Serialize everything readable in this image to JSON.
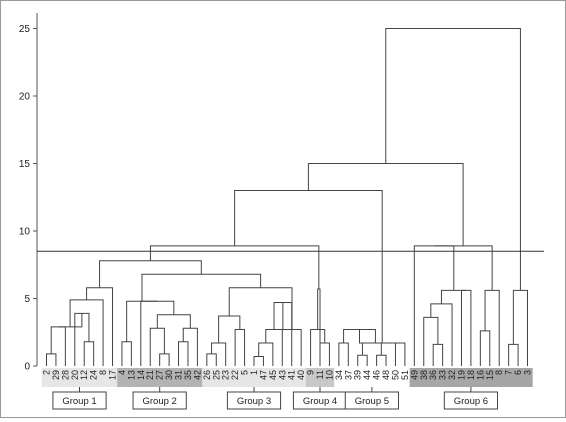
{
  "chart_data": {
    "type": "dendrogram",
    "ylim": [
      0,
      26
    ],
    "yticks": [
      0,
      5,
      10,
      15,
      20,
      25
    ],
    "cut_height": 8.5,
    "leaves": [
      "2",
      "29",
      "28",
      "20",
      "12",
      "24",
      "8",
      "17",
      "4",
      "13",
      "14",
      "21",
      "27",
      "30",
      "31",
      "35",
      "42",
      "26",
      "25",
      "23",
      "22",
      "5",
      "1",
      "47",
      "45",
      "43",
      "41",
      "40",
      "9",
      "11",
      "10",
      "34",
      "37",
      "39",
      "44",
      "46",
      "48",
      "50",
      "51",
      "49",
      "38",
      "36",
      "33",
      "32",
      "19",
      "18",
      "16",
      "15",
      "8",
      "7",
      "6",
      "3"
    ],
    "leaf_band_shades": [
      "#e6e6e6",
      "#e6e6e6",
      "#e6e6e6",
      "#e6e6e6",
      "#e6e6e6",
      "#e6e6e6",
      "#e6e6e6",
      "#e6e6e6",
      "#b3b3b3",
      "#b3b3b3",
      "#b3b3b3",
      "#b3b3b3",
      "#b3b3b3",
      "#b3b3b3",
      "#b3b3b3",
      "#b3b3b3",
      "#b3b3b3",
      "#e6e6e6",
      "#e6e6e6",
      "#e6e6e6",
      "#e6e6e6",
      "#e6e6e6",
      "#e6e6e6",
      "#e6e6e6",
      "#e6e6e6",
      "#e6e6e6",
      "#e6e6e6",
      "#e6e6e6",
      "#c8c8c8",
      "#c8c8c8",
      "#c8c8c8",
      "#ffffff",
      "#ffffff",
      "#ffffff",
      "#ffffff",
      "#ffffff",
      "#ffffff",
      "#ffffff",
      "#ffffff",
      "#a6a6a6",
      "#a6a6a6",
      "#a6a6a6",
      "#a6a6a6",
      "#a6a6a6",
      "#a6a6a6",
      "#a6a6a6",
      "#a6a6a6",
      "#a6a6a6",
      "#a6a6a6",
      "#a6a6a6",
      "#a6a6a6",
      "#a6a6a6"
    ],
    "groups": [
      {
        "label": "Group 1",
        "first": 0,
        "last": 7
      },
      {
        "label": "Group 2",
        "first": 8,
        "last": 16
      },
      {
        "label": "Group 3",
        "first": 17,
        "last": 27
      },
      {
        "label": "Group 4",
        "first": 28,
        "last": 30
      },
      {
        "label": "Group 5",
        "first": 31,
        "last": 38
      },
      {
        "label": "Group 6",
        "first": 39,
        "last": 51
      }
    ],
    "merges": [
      {
        "id": "m1",
        "a": 0,
        "b": 1,
        "h": 0.9
      },
      {
        "id": "m2",
        "a": "m1",
        "b": 2,
        "h": 2.9
      },
      {
        "id": "m3",
        "a": 4,
        "b": 5,
        "h": 1.8
      },
      {
        "id": "m4",
        "a": 3,
        "b": "m3",
        "h": 3.9
      },
      {
        "id": "m5",
        "a": "m2",
        "b": "m4",
        "h": 2.9
      },
      {
        "id": "m6",
        "a": "m5",
        "b": 6,
        "h": 4.9
      },
      {
        "id": "m7",
        "a": "m6",
        "b": 7,
        "h": 5.8
      },
      {
        "id": "m8",
        "a": 8,
        "b": 9,
        "h": 1.8
      },
      {
        "id": "m9",
        "a": 12,
        "b": 13,
        "h": 0.9
      },
      {
        "id": "m10",
        "a": 11,
        "b": "m9",
        "h": 2.8
      },
      {
        "id": "m11",
        "a": 14,
        "b": 15,
        "h": 1.8
      },
      {
        "id": "m12",
        "a": "m11",
        "b": 16,
        "h": 2.8
      },
      {
        "id": "m13",
        "a": "m10",
        "b": "m12",
        "h": 3.8
      },
      {
        "id": "m14",
        "a": 10,
        "b": "m13",
        "h": 4.8
      },
      {
        "id": "m15",
        "a": "m8",
        "b": "m14",
        "h": 4.8
      },
      {
        "id": "m16",
        "a": 17,
        "b": 18,
        "h": 0.9
      },
      {
        "id": "m17",
        "a": "m16",
        "b": 19,
        "h": 1.7
      },
      {
        "id": "m18",
        "a": 20,
        "b": 21,
        "h": 2.7
      },
      {
        "id": "m19",
        "a": "m17",
        "b": "m18",
        "h": 3.7
      },
      {
        "id": "m20",
        "a": 22,
        "b": 23,
        "h": 0.7
      },
      {
        "id": "m21",
        "a": "m20",
        "b": 24,
        "h": 1.7
      },
      {
        "id": "m22",
        "a": "m21",
        "b": 25,
        "h": 2.7
      },
      {
        "id": "m23",
        "a": "m22",
        "b": 26,
        "h": 4.7
      },
      {
        "id": "m24",
        "a": "m23",
        "b": 27,
        "h": 2.7
      },
      {
        "id": "m25",
        "a": "m19",
        "b": "m24",
        "h": 5.8
      },
      {
        "id": "m26",
        "a": "m15",
        "b": "m25",
        "h": 6.8
      },
      {
        "id": "m27",
        "a": "m7",
        "b": "m26",
        "h": 7.8
      },
      {
        "id": "m28",
        "a": 29,
        "b": 30,
        "h": 1.7
      },
      {
        "id": "m29",
        "a": 28,
        "b": "m28",
        "h": 2.7
      },
      {
        "id": "m30",
        "a": "m29",
        "b": 29,
        "h": 5.7
      },
      {
        "id": "m31",
        "a": "m27",
        "b": "m30",
        "h": 8.9
      },
      {
        "id": "m32",
        "a": 31,
        "b": 32,
        "h": 1.7
      },
      {
        "id": "m33",
        "a": 33,
        "b": 34,
        "h": 0.8
      },
      {
        "id": "m34",
        "a": 35,
        "b": 36,
        "h": 0.8
      },
      {
        "id": "m35",
        "a": "m34",
        "b": 37,
        "h": 1.7
      },
      {
        "id": "m36",
        "a": "m33",
        "b": "m35",
        "h": 1.7
      },
      {
        "id": "m37",
        "a": "m32",
        "b": "m36",
        "h": 2.7
      },
      {
        "id": "m38",
        "a": "m37",
        "b": 38,
        "h": 1.7
      },
      {
        "id": "m39",
        "a": "m31",
        "b": "m38",
        "h": 13.0
      },
      {
        "id": "m40",
        "a": 41,
        "b": 42,
        "h": 1.6
      },
      {
        "id": "m41",
        "a": 40,
        "b": "m40",
        "h": 3.6
      },
      {
        "id": "m42",
        "a": "m41",
        "b": 43,
        "h": 4.6
      },
      {
        "id": "m43",
        "a": 44,
        "b": 45,
        "h": 5.6
      },
      {
        "id": "m44",
        "a": "m42",
        "b": "m43",
        "h": 5.6
      },
      {
        "id": "m45",
        "a": 46,
        "b": 47,
        "h": 2.6
      },
      {
        "id": "m46",
        "a": "m45",
        "b": 48,
        "h": 5.6
      },
      {
        "id": "m47",
        "a": 49,
        "b": 50,
        "h": 1.6
      },
      {
        "id": "m48",
        "a": "m47",
        "b": 51,
        "h": 5.6
      },
      {
        "id": "m49",
        "a": 39,
        "b": "m44",
        "h": 8.9
      },
      {
        "id": "m50",
        "a": "m49",
        "b": "m46",
        "h": 8.9
      },
      {
        "id": "m51",
        "a": "m39",
        "b": "m50",
        "h": 15.0
      },
      {
        "id": "m52",
        "a": "m51",
        "b": "m48",
        "h": 25.0
      }
    ]
  }
}
